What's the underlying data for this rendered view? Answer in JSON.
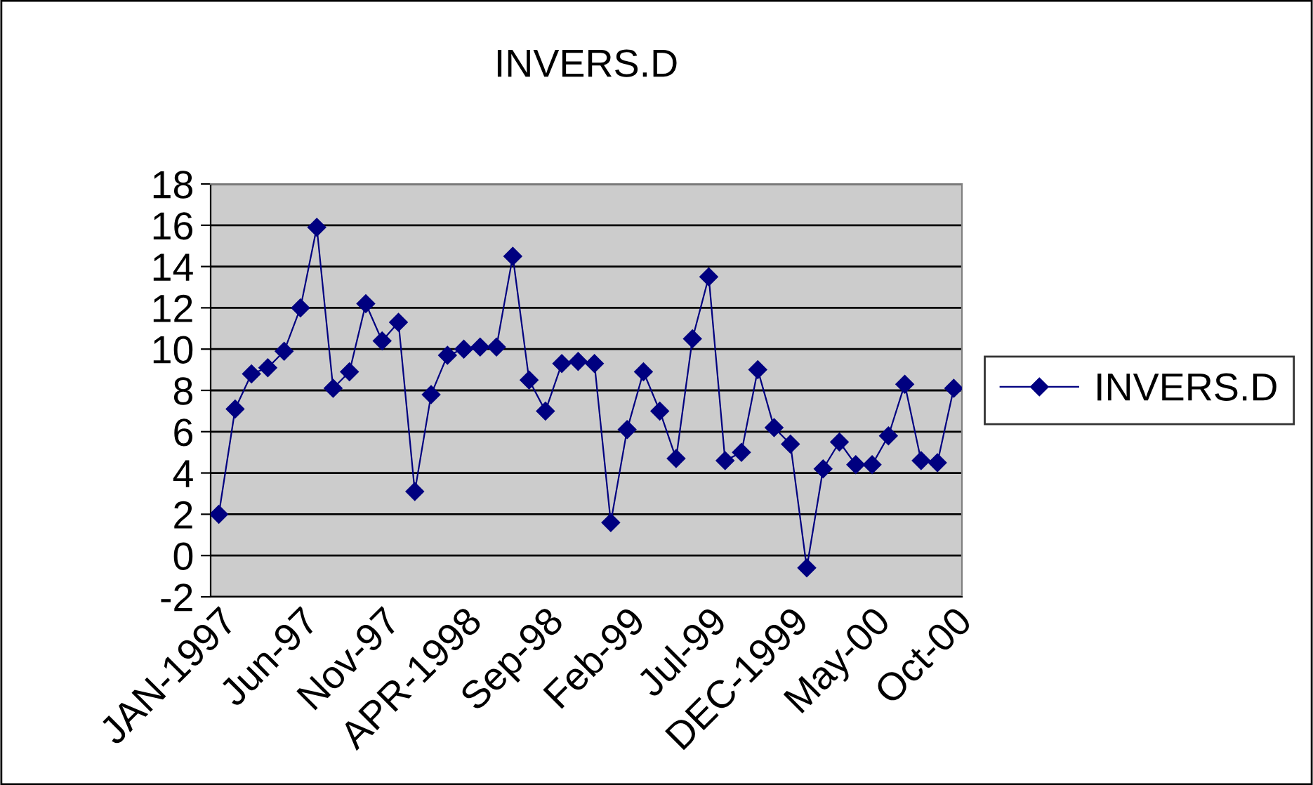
{
  "chart_data": {
    "type": "line",
    "title": "INVERS.D",
    "categories": [
      "JAN-1997",
      null,
      null,
      null,
      null,
      "Jun-97",
      null,
      null,
      null,
      null,
      "Nov-97",
      null,
      null,
      null,
      null,
      "APR-1998",
      null,
      null,
      null,
      null,
      "Sep-98",
      null,
      null,
      null,
      null,
      "Feb-99",
      null,
      null,
      null,
      null,
      "Jul-99",
      null,
      null,
      null,
      null,
      "DEC-1999",
      null,
      null,
      null,
      null,
      "May-00",
      null,
      null,
      null,
      null,
      "Oct-00"
    ],
    "series": [
      {
        "name": "INVERS.D",
        "color": "#000080",
        "values": [
          2.0,
          7.1,
          8.8,
          9.1,
          9.9,
          12.0,
          15.9,
          8.1,
          8.9,
          12.2,
          10.4,
          11.3,
          3.1,
          7.8,
          9.7,
          10.0,
          10.1,
          10.1,
          14.5,
          8.5,
          7.0,
          9.3,
          9.4,
          9.3,
          1.6,
          6.1,
          8.9,
          7.0,
          4.7,
          10.5,
          13.5,
          4.6,
          5.0,
          9.0,
          6.2,
          5.4,
          -0.6,
          4.2,
          5.5,
          4.4,
          4.4,
          5.8,
          8.3,
          4.6,
          4.5,
          8.1
        ]
      }
    ],
    "ylim": [
      -2,
      18
    ],
    "yticks": [
      -2,
      0,
      2,
      4,
      6,
      8,
      10,
      12,
      14,
      16,
      18
    ],
    "grid": "y",
    "legend": "right",
    "marker": "diamond",
    "line_style": "solid"
  }
}
